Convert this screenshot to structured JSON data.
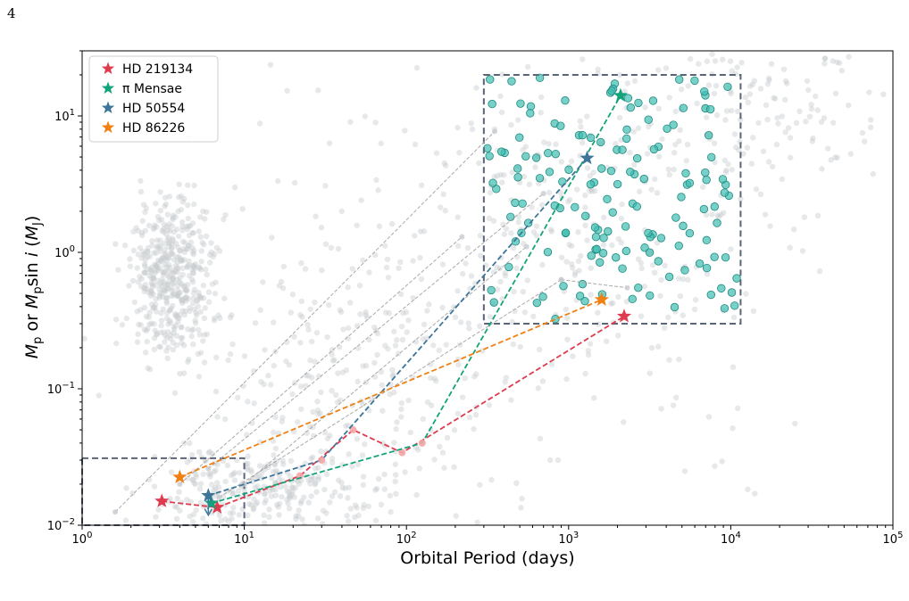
{
  "page": {
    "number": "4"
  },
  "chart_data": {
    "type": "scatter",
    "title": "",
    "xlabel": "Orbital Period (days)",
    "ylabel": "M_p or M_p sin i (M_J)",
    "xscale": "log",
    "yscale": "log",
    "xlim": [
      1,
      100000
    ],
    "ylim": [
      0.01,
      30
    ],
    "x_ticks": [
      {
        "value": 1,
        "base": "10",
        "exp": "0"
      },
      {
        "value": 10,
        "base": "10",
        "exp": "1"
      },
      {
        "value": 100,
        "base": "10",
        "exp": "2"
      },
      {
        "value": 1000,
        "base": "10",
        "exp": "3"
      },
      {
        "value": 10000,
        "base": "10",
        "exp": "4"
      },
      {
        "value": 100000,
        "base": "10",
        "exp": "5"
      }
    ],
    "y_ticks": [
      {
        "value": 0.01,
        "base": "10",
        "exp": "−2"
      },
      {
        "value": 0.1,
        "base": "10",
        "exp": "−1"
      },
      {
        "value": 1,
        "base": "10",
        "exp": "0"
      },
      {
        "value": 10,
        "base": "10",
        "exp": "1"
      }
    ],
    "legend_position": "top-left",
    "legend": [
      {
        "name": "HD 219134",
        "color": "#e03a4e"
      },
      {
        "name": "π Mensae",
        "color": "#13a37a"
      },
      {
        "name": "HD 50554",
        "color": "#3d7699"
      },
      {
        "name": "HD 86226",
        "color": "#f08012"
      }
    ],
    "selection_boxes": [
      {
        "x": [
          300,
          11500
        ],
        "y": [
          0.3,
          20
        ]
      },
      {
        "x": [
          1,
          10
        ],
        "y": [
          0.01,
          0.031
        ]
      }
    ],
    "background_color": "#c7cbcf",
    "highlight_color": "#3fbdb0",
    "systems": [
      {
        "name": "HD 219134",
        "color": "#e03a4e",
        "points": [
          [
            3.1,
            0.015
          ],
          [
            6.8,
            0.0135
          ],
          [
            22,
            0.023
          ],
          [
            46.9,
            0.05
          ],
          [
            94,
            0.034
          ],
          [
            2200,
            0.34
          ]
        ],
        "stars": [
          [
            3.1,
            0.015
          ],
          [
            6.8,
            0.0135
          ],
          [
            2200,
            0.34
          ]
        ]
      },
      {
        "name": "π Mensae",
        "color": "#13a37a",
        "points": [
          [
            6.27,
            0.0145
          ],
          [
            125,
            0.04
          ],
          [
            2090,
            14.1
          ]
        ],
        "stars": [
          [
            6.27,
            0.0145
          ],
          [
            2090,
            14.1
          ]
        ]
      },
      {
        "name": "HD 50554",
        "color": "#3d7699",
        "points": [
          [
            6,
            0.0165
          ],
          [
            30,
            0.03
          ],
          [
            1300,
            4.9
          ]
        ],
        "stars": [
          [
            6,
            0.0165
          ],
          [
            1300,
            4.9
          ]
        ],
        "upper_limit": [
          6,
          0.0165
        ]
      },
      {
        "name": "HD 86226",
        "color": "#f08012",
        "points": [
          [
            4,
            0.0225
          ],
          [
            1600,
            0.45
          ]
        ],
        "stars": [
          [
            4,
            0.0225
          ],
          [
            1600,
            0.45
          ]
        ]
      }
    ],
    "grey_connectors": [
      [
        [
          1.6,
          0.0125
        ],
        [
          350,
          7.7
        ]
      ],
      [
        [
          4,
          0.02
        ],
        [
          220,
          1.3
        ]
      ],
      [
        [
          6,
          0.026
        ],
        [
          700,
          2.7
        ]
      ],
      [
        [
          10,
          0.02
        ],
        [
          550,
          1.1
        ]
      ],
      [
        [
          7,
          0.016
        ],
        [
          900,
          0.63
        ]
      ],
      [
        [
          900,
          0.63
        ],
        [
          2300,
          0.55
        ]
      ]
    ]
  }
}
